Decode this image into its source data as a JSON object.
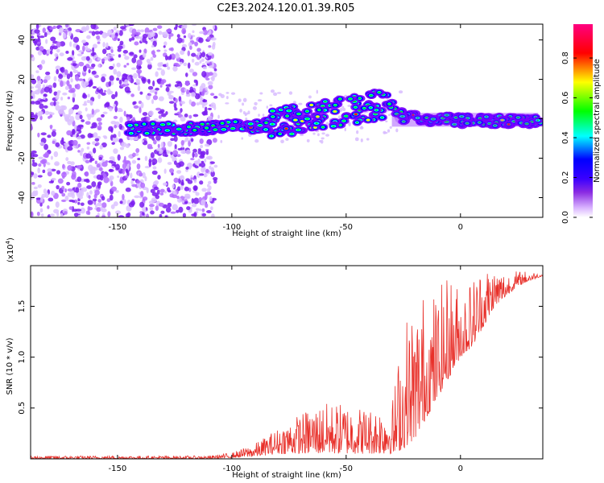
{
  "figure_title": "C2E3.2024.120.01.39.R05",
  "chart_data": [
    {
      "type": "heatmap",
      "xlabel": "Height of straight line (km)",
      "ylabel": "Frequency (Hz)",
      "xlim": [
        -188,
        36
      ],
      "ylim": [
        -50,
        48
      ],
      "x_ticks": [
        -150,
        -100,
        -50,
        0
      ],
      "y_ticks": [
        -40,
        -20,
        0,
        20,
        40
      ],
      "colorbar": {
        "label": "Normalized spectral amplitude",
        "range": [
          0,
          0.97
        ],
        "ticks": [
          0.0,
          0.2,
          0.4,
          0.6,
          0.8
        ],
        "colormap": [
          "#ffffff",
          "#d9b3ff",
          "#8a2be2",
          "#3a00ff",
          "#0000ff",
          "#00ffff",
          "#00ff00",
          "#ffff00",
          "#ff0000",
          "#ff0080"
        ]
      },
      "ridge": {
        "description_points_x": [
          -145,
          -130,
          -115,
          -100,
          -90,
          -80,
          -70,
          -60,
          -50,
          -40,
          -32,
          -25,
          -15,
          -5,
          0,
          10,
          20,
          34
        ],
        "description_points_y": [
          -5,
          -5,
          -5,
          -4,
          -4,
          -2,
          0,
          2,
          4,
          6,
          8,
          1,
          0,
          0,
          -1,
          -1,
          -1,
          -1
        ]
      }
    },
    {
      "type": "line",
      "xlabel": "Height of straight line (km)",
      "ylabel": "SNR (10 * v/v)",
      "y_multiplier": "(x10",
      "y_multiplier_exp": "4",
      "xlim": [
        -188,
        36
      ],
      "ylim": [
        0,
        1.9
      ],
      "x_ticks": [
        -150,
        -100,
        -50,
        0
      ],
      "y_ticks": [
        0.5,
        1.0,
        1.5
      ],
      "color": "#e8302a",
      "envelope": {
        "x": [
          -188,
          -110,
          -100,
          -90,
          -80,
          -70,
          -60,
          -50,
          -40,
          -30,
          -25,
          -20,
          -15,
          -10,
          -5,
          0,
          5,
          10,
          15,
          20,
          25,
          30,
          36
        ],
        "baseline": [
          0.0,
          0.0,
          0.01,
          0.02,
          0.05,
          0.05,
          0.05,
          0.05,
          0.05,
          0.05,
          0.1,
          0.2,
          0.4,
          0.6,
          0.8,
          1.0,
          1.1,
          1.3,
          1.5,
          1.6,
          1.7,
          1.75,
          1.8
        ],
        "peak": [
          0.03,
          0.03,
          0.06,
          0.15,
          0.3,
          0.45,
          0.55,
          0.55,
          0.5,
          0.55,
          1.4,
          1.6,
          1.7,
          1.65,
          1.85,
          1.7,
          1.8,
          1.95,
          1.9,
          1.85,
          1.85,
          1.85,
          1.82
        ]
      }
    }
  ]
}
